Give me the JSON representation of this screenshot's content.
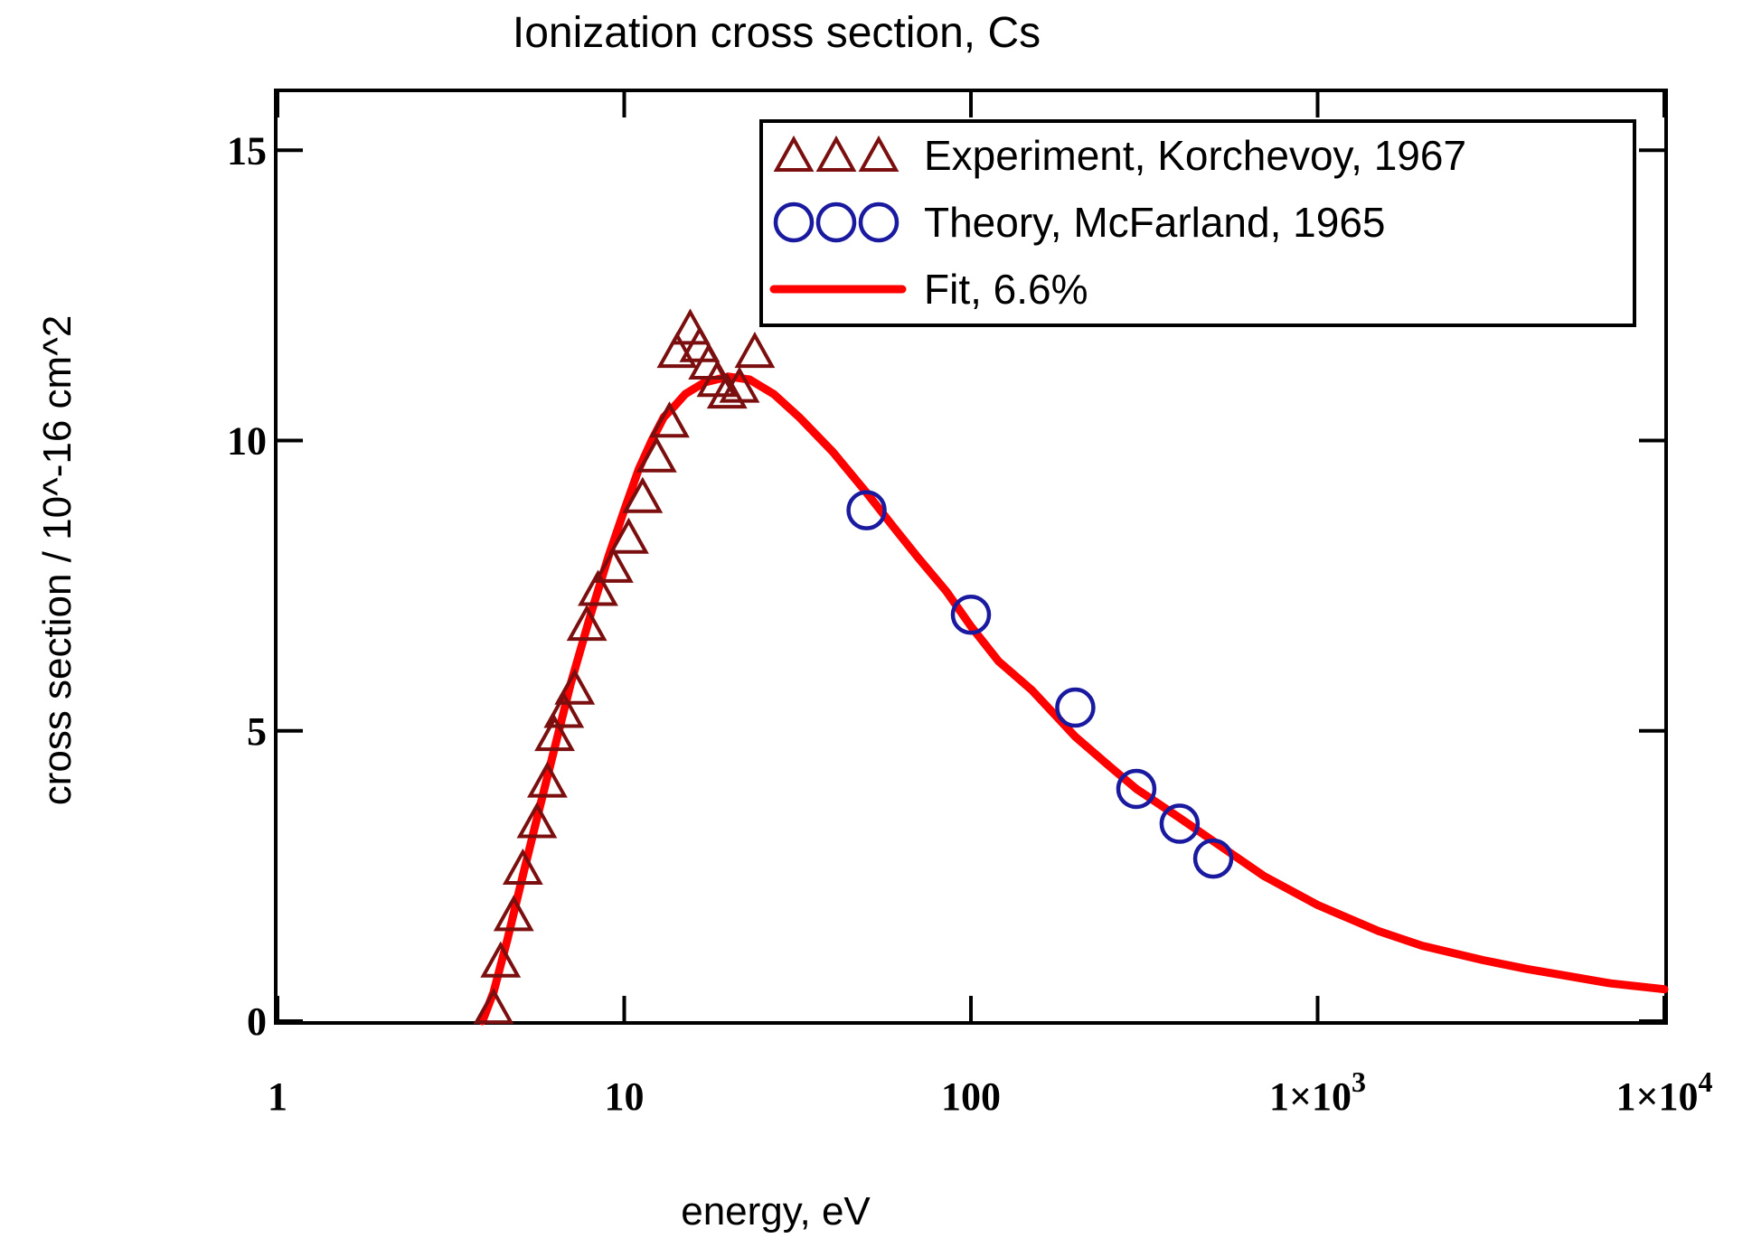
{
  "chart_data": {
    "type": "scatter",
    "title": "Ionization cross section, Cs",
    "xlabel": "energy, eV",
    "ylabel": "cross section / 10^-16 cm^2",
    "xscale": "log",
    "xlim": [
      1,
      10000
    ],
    "ylim": [
      0,
      16
    ],
    "x_ticks": [
      {
        "value": 1,
        "label": "1"
      },
      {
        "value": 10,
        "label": "10"
      },
      {
        "value": 100,
        "label": "100"
      },
      {
        "value": 1000,
        "label": "1×10",
        "exp": "3"
      },
      {
        "value": 10000,
        "label": "1×10",
        "exp": "4"
      }
    ],
    "y_ticks": [
      {
        "value": 0,
        "label": "0"
      },
      {
        "value": 5,
        "label": "5"
      },
      {
        "value": 10,
        "label": "10"
      },
      {
        "value": 15,
        "label": "15"
      }
    ],
    "legend_position": "top-right",
    "series": [
      {
        "name": "Experiment, Korchevoy, 1967",
        "marker": "triangle",
        "color": "#7b0f0f",
        "x": [
          4.2,
          4.4,
          4.8,
          5.1,
          5.6,
          6.0,
          6.3,
          6.7,
          7.2,
          7.8,
          8.4,
          9.3,
          10.3,
          11.3,
          12.4,
          13.5,
          14.2,
          15.5,
          16.5,
          17.5,
          18.5,
          19.8,
          21.5,
          23.8
        ],
        "y": [
          0.2,
          1.0,
          1.8,
          2.6,
          3.4,
          4.1,
          4.9,
          5.3,
          5.7,
          6.8,
          7.4,
          7.8,
          8.3,
          9.0,
          9.7,
          10.3,
          11.5,
          11.9,
          11.6,
          11.3,
          11.0,
          10.8,
          10.9,
          11.5
        ]
      },
      {
        "name": "Theory, McFarland, 1965",
        "marker": "circle",
        "color": "#1a1aa0",
        "x": [
          50,
          100,
          200,
          300,
          400,
          500
        ],
        "y": [
          8.8,
          7.0,
          5.4,
          4.0,
          3.4,
          2.8
        ]
      },
      {
        "name": "Fit, 6.6%",
        "marker": "line",
        "color": "#ff0000",
        "x": [
          3.9,
          4.2,
          4.6,
          5.0,
          5.5,
          6.0,
          7.0,
          8.0,
          9.0,
          10.0,
          11.0,
          12.0,
          13.0,
          14.0,
          15.0,
          17.0,
          20.0,
          23.0,
          27.0,
          32.0,
          40.0,
          50.0,
          60.0,
          70.0,
          85.0,
          100.0,
          120.0,
          150.0,
          200.0,
          250.0,
          300.0,
          400.0,
          500.0,
          700.0,
          1000.0,
          1500.0,
          2000.0,
          3000.0,
          4000.0,
          5000.0,
          7000.0,
          10000.0
        ],
        "y": [
          0.0,
          0.5,
          1.4,
          2.3,
          3.3,
          4.2,
          5.8,
          7.0,
          8.0,
          8.8,
          9.5,
          10.0,
          10.4,
          10.6,
          10.8,
          11.0,
          11.1,
          11.05,
          10.8,
          10.4,
          9.8,
          9.1,
          8.5,
          8.0,
          7.4,
          6.8,
          6.2,
          5.7,
          4.9,
          4.4,
          4.0,
          3.5,
          3.1,
          2.5,
          2.0,
          1.55,
          1.3,
          1.05,
          0.9,
          0.8,
          0.65,
          0.55
        ]
      }
    ]
  }
}
